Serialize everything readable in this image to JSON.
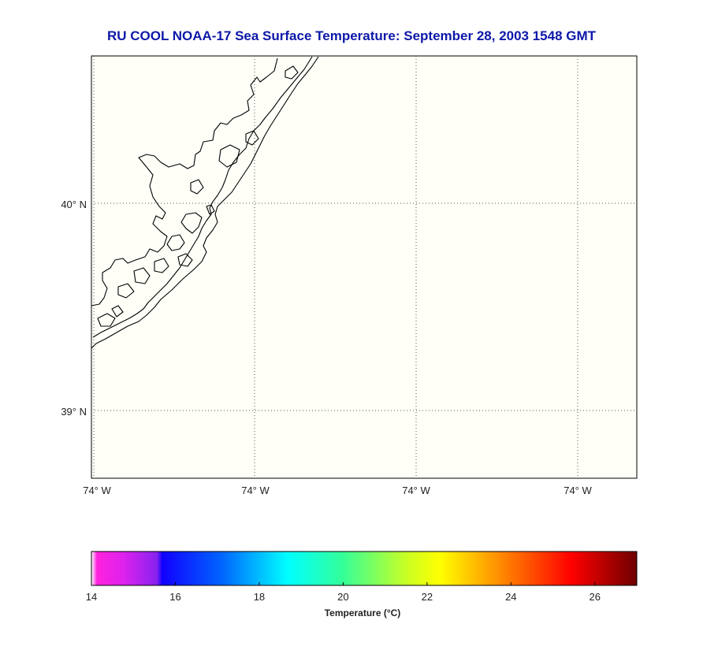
{
  "title": "RU COOL  NOAA-17  Sea Surface Temperature:  September 28, 2003 1548 GMT",
  "map": {
    "lat_labels": [
      "40° N",
      "39° N"
    ],
    "lon_labels": [
      "74° W",
      "74° W",
      "74° W",
      "74° W"
    ],
    "background_color": "#fffff8"
  },
  "colorbar": {
    "label": "Temperature (°C)",
    "tick_labels": [
      "14",
      "16",
      "18",
      "20",
      "22",
      "24",
      "26"
    ],
    "range": [
      14,
      27
    ],
    "colors": [
      "#ff22dd",
      "#0000ff",
      "#00ffff",
      "#ffff00",
      "#ff0000",
      "#700000"
    ]
  }
}
